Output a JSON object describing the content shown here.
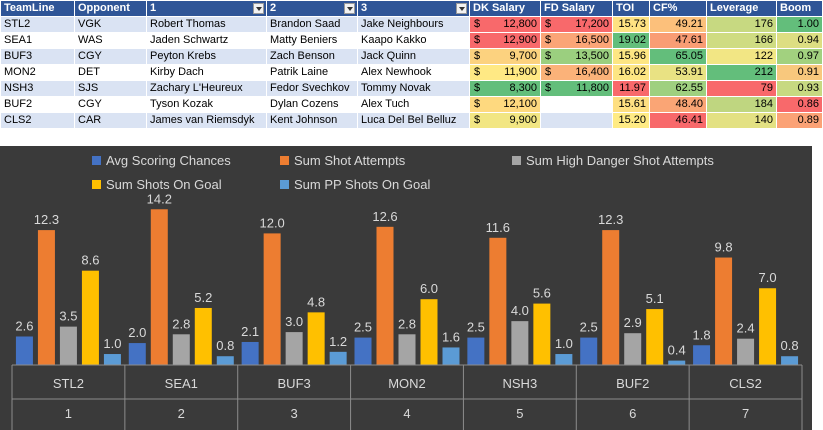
{
  "table": {
    "headers": [
      {
        "label": "TeamLine",
        "filter": false
      },
      {
        "label": "Opponent",
        "filter": false
      },
      {
        "label": "1",
        "filter": true
      },
      {
        "label": "2",
        "filter": true
      },
      {
        "label": "3",
        "filter": true
      },
      {
        "label": "DK Salary",
        "filter": false
      },
      {
        "label": "FD Salary",
        "filter": false
      },
      {
        "label": "TOI",
        "filter": false
      },
      {
        "label": "CF%",
        "filter": false
      },
      {
        "label": "Leverage",
        "filter": false
      },
      {
        "label": "Boom",
        "filter": false
      }
    ],
    "rows": [
      {
        "teamline": "STL2",
        "opponent": "VGK",
        "p1": "Robert Thomas",
        "p2": "Brandon Saad",
        "p3": "Jake Neighbours",
        "dk": "12,800",
        "fd": "17,200",
        "toi": "15.73",
        "cf": "49.21",
        "leverage": "176",
        "boom": "1.00"
      },
      {
        "teamline": "SEA1",
        "opponent": "WAS",
        "p1": "Jaden Schwartz",
        "p2": "Matty Beniers",
        "p3": "Kaapo Kakko",
        "dk": "12,900",
        "fd": "16,500",
        "toi": "19.02",
        "cf": "47.61",
        "leverage": "166",
        "boom": "0.94"
      },
      {
        "teamline": "BUF3",
        "opponent": "CGY",
        "p1": "Peyton Krebs",
        "p2": "Zach Benson",
        "p3": "Jack Quinn",
        "dk": "9,700",
        "fd": "13,500",
        "toi": "15.96",
        "cf": "65.05",
        "leverage": "122",
        "boom": "0.97"
      },
      {
        "teamline": "MON2",
        "opponent": "DET",
        "p1": "Kirby Dach",
        "p2": "Patrik Laine",
        "p3": "Alex Newhook",
        "dk": "11,900",
        "fd": "16,400",
        "toi": "16.02",
        "cf": "53.91",
        "leverage": "212",
        "boom": "0.91"
      },
      {
        "teamline": "NSH3",
        "opponent": "SJS",
        "p1": "Zachary L'Heureux",
        "p2": "Fedor Svechkov",
        "p3": "Tommy Novak",
        "dk": "8,300",
        "fd": "11,800",
        "toi": "11.97",
        "cf": "62.55",
        "leverage": "79",
        "boom": "0.93"
      },
      {
        "teamline": "BUF2",
        "opponent": "CGY",
        "p1": "Tyson Kozak",
        "p2": "Dylan Cozens",
        "p3": "Alex Tuch",
        "dk": "12,100",
        "fd": "",
        "toi": "15.61",
        "cf": "48.40",
        "leverage": "184",
        "boom": "0.86"
      },
      {
        "teamline": "CLS2",
        "opponent": "CAR",
        "p1": "James van Riemsdyk",
        "p2": "Kent Johnson",
        "p3": "Luca Del Bel Belluz",
        "dk": "9,900",
        "fd": "",
        "toi": "15.20",
        "cf": "46.41",
        "leverage": "140",
        "boom": "0.89"
      }
    ],
    "currency_symbol": "$",
    "cell_colors": {
      "dk": [
        "#f8696b",
        "#f8696b",
        "#fcd27f",
        "#ffe984",
        "#63be7b",
        "#fed97f",
        "#f2e683"
      ],
      "fd": [
        "#f8696b",
        "#fba577",
        "#9bcf7f",
        "#fbb279",
        "#63be7b",
        "",
        ""
      ],
      "toi": [
        "#fee282",
        "#63be7b",
        "#fde683",
        "#fde583",
        "#f8696b",
        "#fedf81",
        "#ffeb84"
      ],
      "cf": [
        "#fcc07b",
        "#f99d74",
        "#63be7b",
        "#e9e283",
        "#9fd07f",
        "#faa575",
        "#f8696b"
      ],
      "leverage": [
        "#c7d981",
        "#cfdc82",
        "#f2e684",
        "#63be7b",
        "#f8696b",
        "#bfd680",
        "#e3e183"
      ],
      "boom": [
        "#63be7b",
        "#ddde82",
        "#a2d17f",
        "#f8c87d",
        "#c7d981",
        "#f8696b",
        "#fba276"
      ]
    }
  },
  "chart_data": {
    "type": "bar",
    "categories": [
      "STL2",
      "SEA1",
      "BUF3",
      "MON2",
      "NSH3",
      "BUF2",
      "CLS2"
    ],
    "category_indices": [
      "1",
      "2",
      "3",
      "4",
      "5",
      "6",
      "7"
    ],
    "series": [
      {
        "name": "Avg Scoring Chances",
        "color": "#4472c4",
        "values": [
          2.6,
          2.0,
          2.1,
          2.5,
          2.5,
          2.5,
          1.8
        ]
      },
      {
        "name": "Sum Shot Attempts",
        "color": "#ed7d31",
        "values": [
          12.3,
          14.2,
          12.0,
          12.6,
          11.6,
          12.3,
          9.8
        ]
      },
      {
        "name": "Sum High Danger Shot Attempts",
        "color": "#a5a5a5",
        "values": [
          3.5,
          2.8,
          3.0,
          2.8,
          4.0,
          2.9,
          2.4
        ]
      },
      {
        "name": "Sum Shots On Goal",
        "color": "#ffc000",
        "values": [
          8.6,
          5.2,
          4.8,
          6.0,
          5.6,
          5.1,
          7.0
        ]
      },
      {
        "name": "Sum PP Shots On Goal",
        "color": "#5b9bd5",
        "values": [
          1.0,
          0.8,
          1.2,
          1.6,
          1.0,
          0.4,
          0.8
        ]
      }
    ],
    "ylim": [
      0,
      15
    ],
    "title": "",
    "xlabel": "",
    "ylabel": "",
    "grid": false,
    "legend": "top"
  }
}
